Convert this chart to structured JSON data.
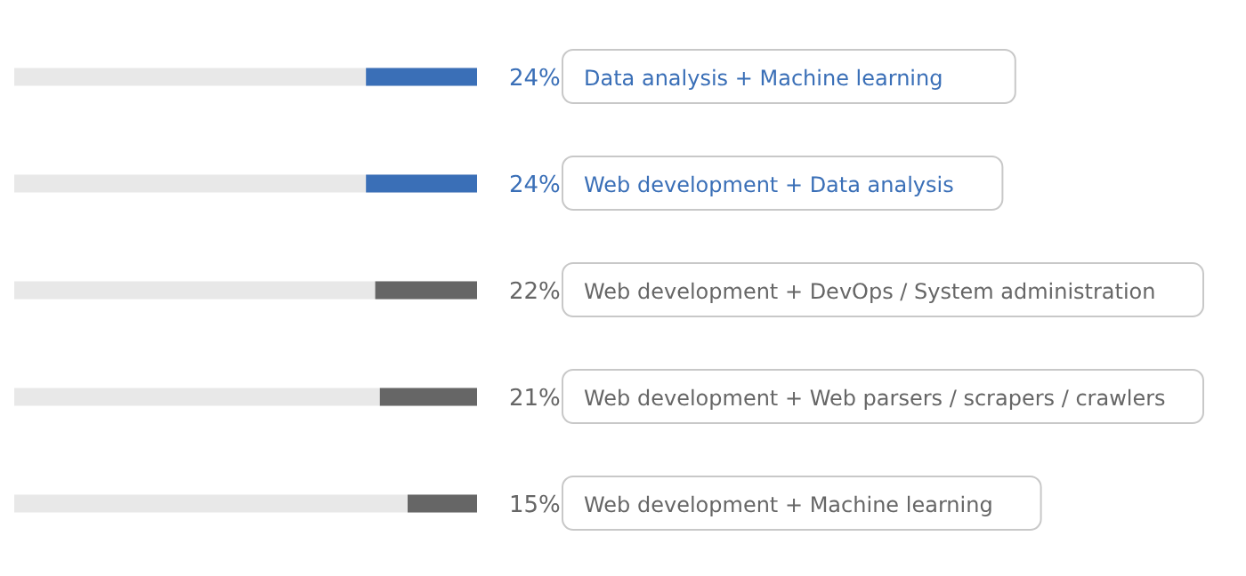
{
  "chart_data": {
    "type": "bar",
    "orientation": "horizontal",
    "xlim": [
      100,
      0
    ],
    "categories": [
      "Data analysis + Machine learning",
      "Web development + Data analysis",
      "Web development + DevOps / System administration",
      "Web development + Web parsers / scrapers / crawlers",
      "Web development + Machine learning"
    ],
    "values": [
      24,
      24,
      22,
      21,
      15
    ],
    "colors": [
      "#3a6fb7",
      "#3a6fb7",
      "#666666",
      "#666666",
      "#666666"
    ],
    "value_labels": [
      "24%",
      "24%",
      "22%",
      "21%",
      "15%"
    ]
  }
}
